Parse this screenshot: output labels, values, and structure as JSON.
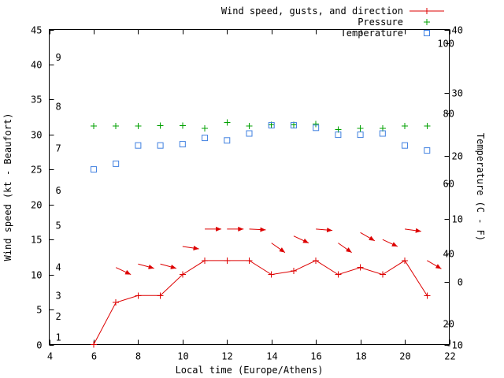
{
  "chart_data": {
    "type": "line",
    "background": "#ffffff",
    "border_color": "#000000",
    "legend": {
      "position": "top-right",
      "entries": [
        {
          "label": "Wind speed, gusts, and direction",
          "sample": "line-plus",
          "text_color": "#8b0000",
          "marker_color": "#dd0000"
        },
        {
          "label": "Pressure",
          "sample": "plus",
          "text_color": "#006400",
          "marker_color": "#00a000"
        },
        {
          "label": "Temperature",
          "sample": "square",
          "text_color": "#00688b",
          "marker_color": "#4080e0"
        }
      ]
    },
    "x_axis": {
      "label": "Local time (Europe/Athens)",
      "range": [
        4,
        22
      ],
      "ticks": [
        4,
        6,
        8,
        10,
        12,
        14,
        16,
        18,
        20,
        22
      ]
    },
    "y_left": {
      "label": "Wind speed (kt - Beaufort)",
      "range": [
        0,
        45
      ],
      "ticks": [
        0,
        5,
        10,
        15,
        20,
        25,
        30,
        35,
        40,
        45
      ],
      "beaufort_numbers": [
        1,
        2,
        3,
        4,
        5,
        6,
        7,
        8,
        9
      ],
      "beaufort_kt": [
        1,
        4,
        7,
        11,
        17,
        22,
        28,
        34,
        41
      ],
      "beaufort_color": "#dd0000"
    },
    "y_right": {
      "label": "Temperature (C - F)",
      "range_c": [
        -10,
        40
      ],
      "c_ticks": [
        40,
        30,
        20,
        10,
        0,
        -10
      ],
      "f_ticks": [
        100,
        80,
        60,
        40,
        20
      ]
    },
    "series": {
      "wind": {
        "name": "Wind speed",
        "marker": "line+plus",
        "color": "#dd0000",
        "hours": [
          6,
          7,
          8,
          9,
          10,
          11,
          12,
          13,
          14,
          15,
          16,
          17,
          18,
          19,
          20,
          21
        ],
        "values_kt": [
          0,
          6,
          7,
          7,
          10,
          12,
          12,
          12,
          10,
          10.5,
          12,
          10,
          11,
          10,
          12,
          7
        ]
      },
      "gusts": {
        "name": "Gusts and direction",
        "marker": "vector-arrow",
        "color": "#dd0000",
        "hours": [
          7,
          8,
          9,
          10,
          11,
          12,
          13,
          14,
          15,
          16,
          17,
          18,
          19,
          20,
          21
        ],
        "values_kt": [
          11,
          11.5,
          11.5,
          14,
          16.5,
          16.5,
          16.5,
          14.5,
          15.5,
          16.5,
          14.5,
          16,
          15,
          16.5,
          12
        ],
        "direction_deg_down_from_east": [
          25,
          15,
          15,
          8,
          0,
          0,
          3,
          35,
          25,
          5,
          35,
          30,
          25,
          8,
          30
        ]
      },
      "pressure": {
        "name": "Pressure",
        "marker": "plus",
        "color": "#00a000",
        "hours": [
          6,
          7,
          8,
          9,
          10,
          11,
          12,
          13,
          14,
          15,
          16,
          17,
          18,
          19,
          20,
          21
        ],
        "plotted_left_axis_values": [
          31.2,
          31.2,
          31.2,
          31.3,
          31.3,
          30.9,
          31.7,
          31.2,
          31.4,
          31.4,
          31.5,
          30.7,
          30.9,
          30.9,
          31.2,
          31.2
        ],
        "note": "no numeric pressure scale visible; values are plotted heights on the left axis"
      },
      "temperature": {
        "name": "Temperature",
        "marker": "open-square",
        "color": "#4080e0",
        "hours": [
          6,
          7,
          8,
          9,
          10,
          11,
          12,
          13,
          14,
          15,
          16,
          17,
          18,
          19,
          20,
          21
        ],
        "values_c": [
          17.8,
          18.7,
          21.6,
          21.6,
          21.8,
          22.8,
          22.4,
          23.5,
          24.8,
          24.8,
          24.4,
          23.3,
          23.3,
          23.5,
          21.6,
          20.8
        ]
      }
    }
  }
}
